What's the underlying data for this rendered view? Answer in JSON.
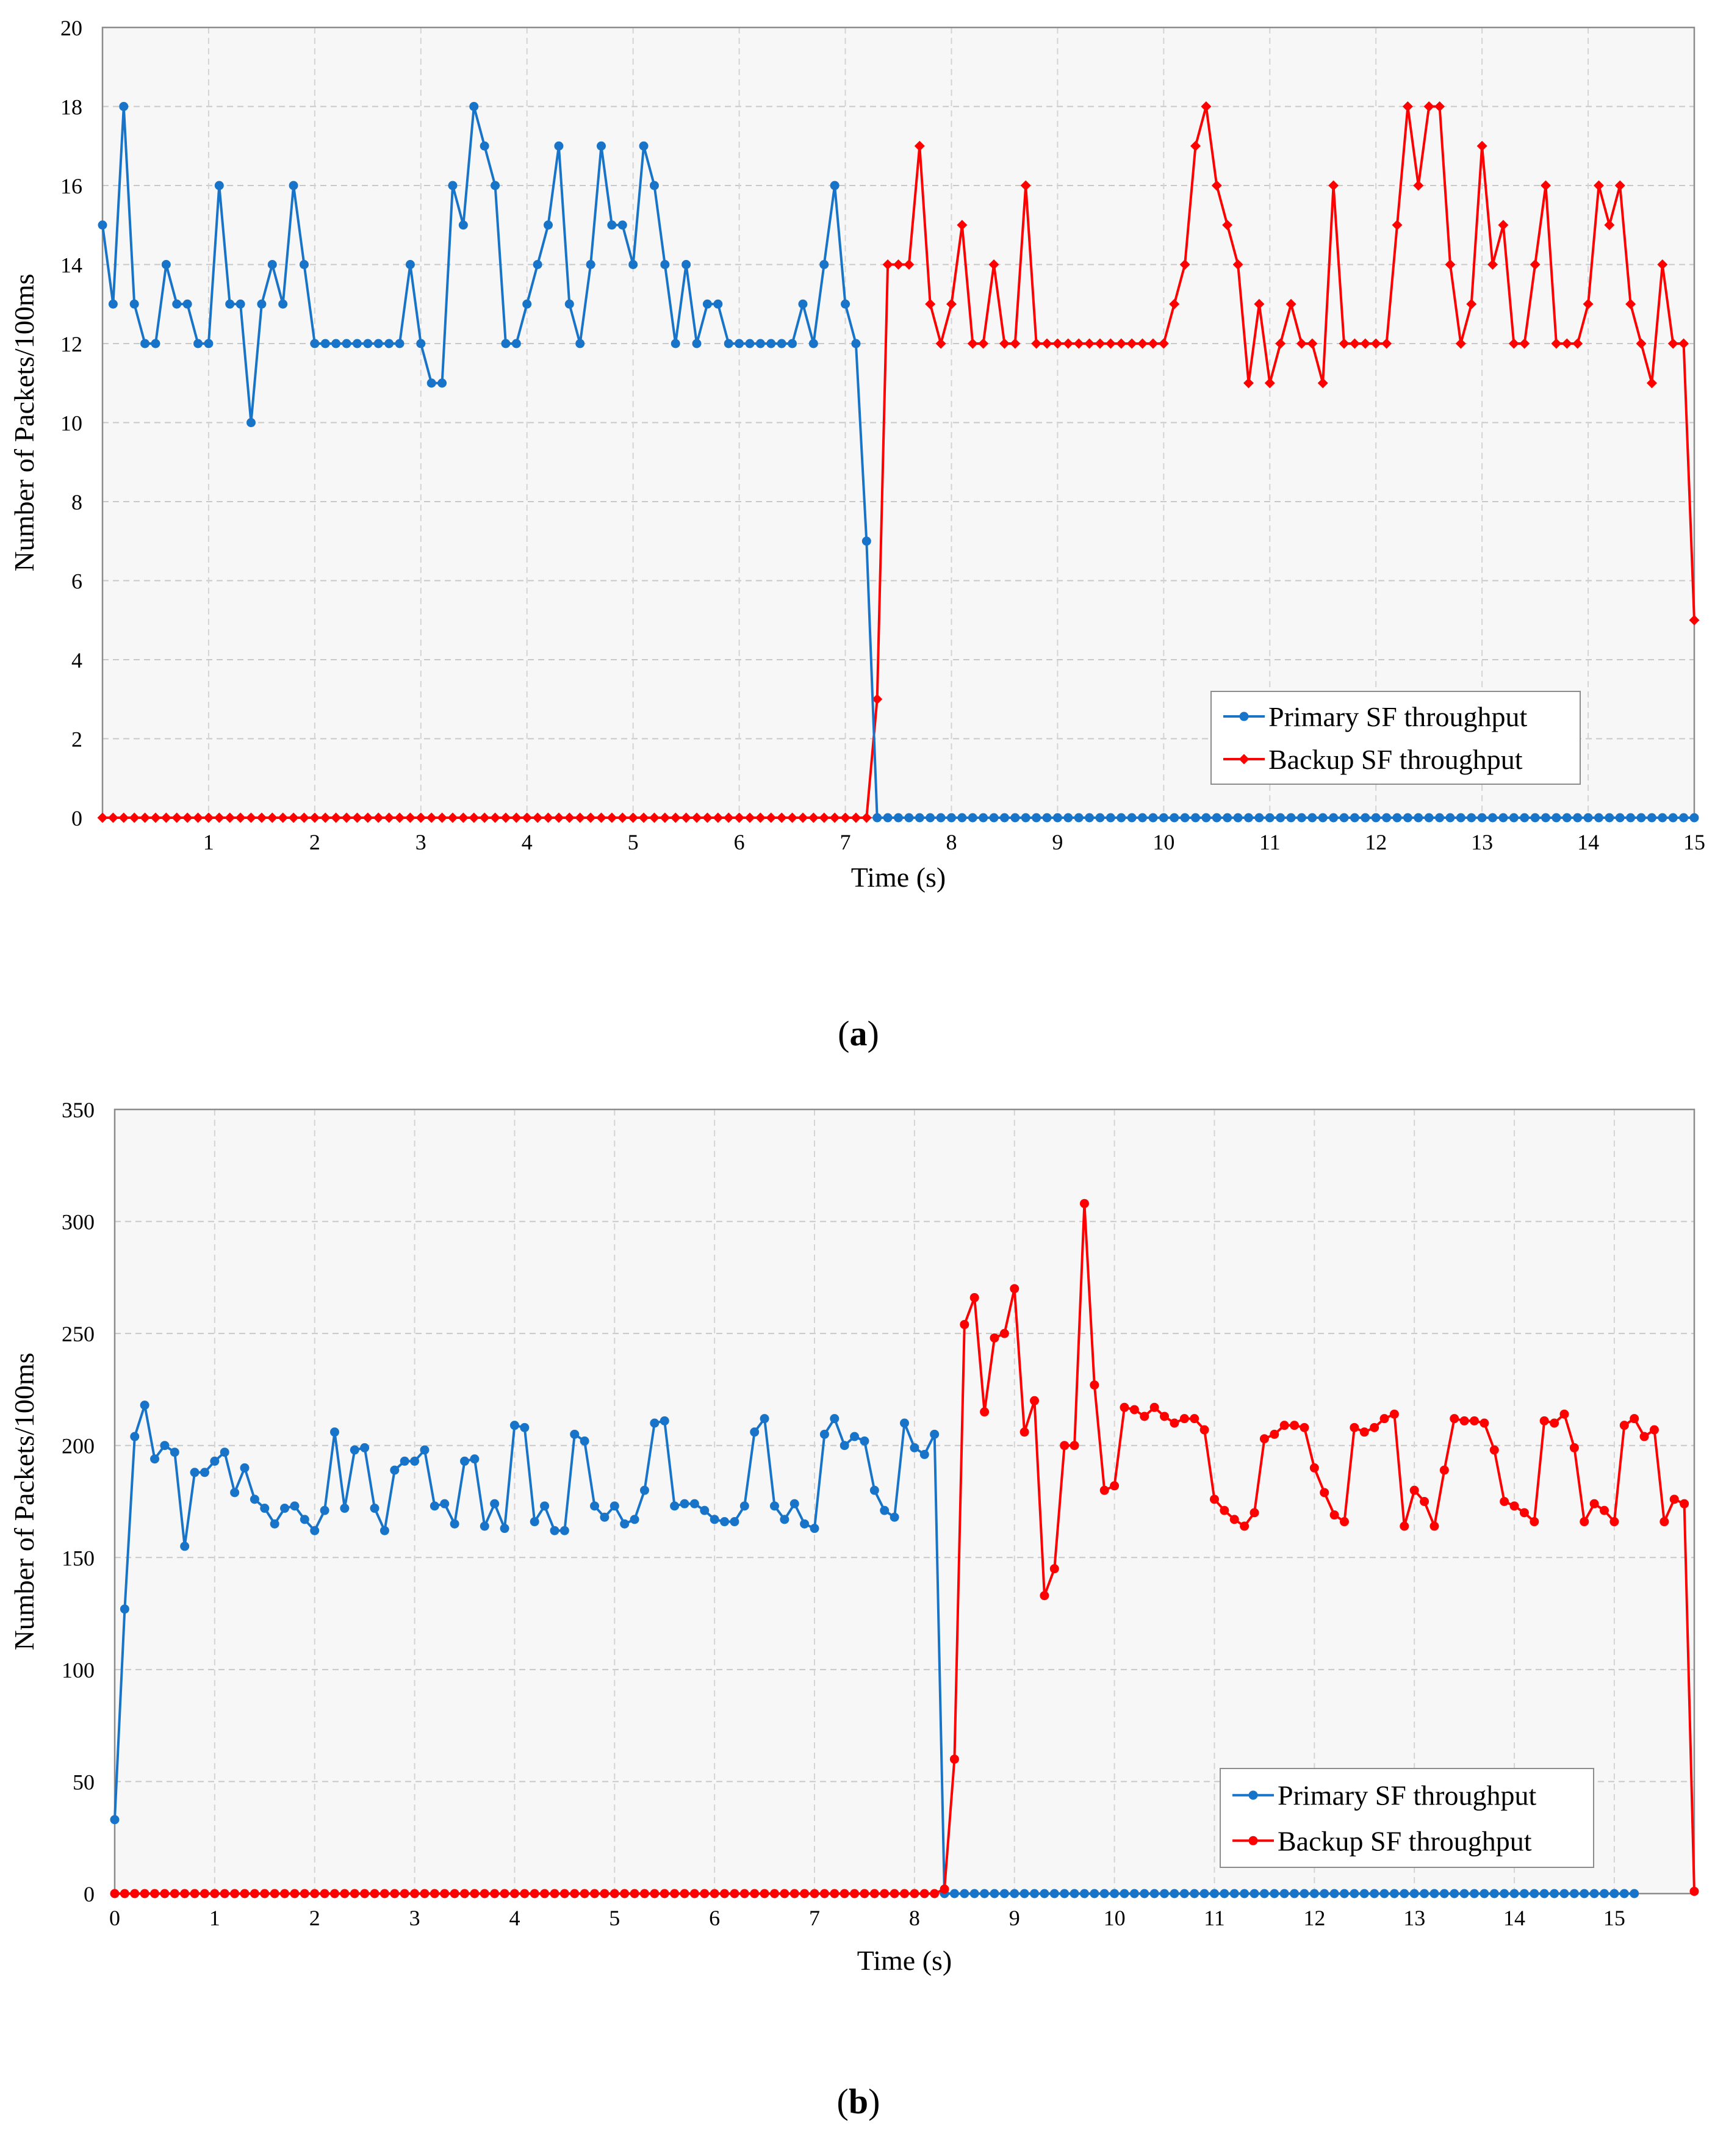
{
  "chart_data": [
    {
      "id": "a",
      "type": "line",
      "caption_letter": "a",
      "xlabel": "Time (s)",
      "ylabel": "Number of Packets/100ms",
      "xlim": [
        0,
        15
      ],
      "ylim": [
        0,
        20
      ],
      "xticks": [
        1,
        2,
        3,
        4,
        5,
        6,
        7,
        8,
        9,
        10,
        11,
        12,
        13,
        14,
        15
      ],
      "yticks": [
        0,
        2,
        4,
        6,
        8,
        10,
        12,
        14,
        16,
        18,
        20
      ],
      "grid": true,
      "legend_position": "bottom-right",
      "series": [
        {
          "name": "Primary SF throughput",
          "color": "#1874c8",
          "marker": "circle",
          "x_start": 0,
          "x_step": 0.1,
          "values": [
            15,
            13,
            18,
            13,
            12,
            12,
            14,
            13,
            13,
            12,
            12,
            16,
            13,
            13,
            10,
            13,
            14,
            13,
            16,
            14,
            12,
            12,
            12,
            12,
            12,
            12,
            12,
            12,
            12,
            14,
            12,
            11,
            11,
            16,
            15,
            18,
            17,
            16,
            12,
            12,
            13,
            14,
            15,
            17,
            13,
            12,
            14,
            17,
            15,
            15,
            14,
            17,
            16,
            14,
            12,
            14,
            12,
            13,
            13,
            12,
            12,
            12,
            12,
            12,
            12,
            12,
            13,
            12,
            14,
            16,
            13,
            12,
            7,
            0,
            0,
            0,
            0,
            0,
            0,
            0,
            0,
            0,
            0,
            0,
            0,
            0,
            0,
            0,
            0,
            0,
            0,
            0,
            0,
            0,
            0,
            0,
            0,
            0,
            0,
            0,
            0,
            0,
            0,
            0,
            0,
            0,
            0,
            0,
            0,
            0,
            0,
            0,
            0,
            0,
            0,
            0,
            0,
            0,
            0,
            0,
            0,
            0,
            0,
            0,
            0,
            0,
            0,
            0,
            0,
            0,
            0,
            0,
            0,
            0,
            0,
            0,
            0,
            0,
            0,
            0,
            0,
            0,
            0,
            0,
            0,
            0,
            0,
            0,
            0,
            0,
            0
          ]
        },
        {
          "name": "Backup SF throughput",
          "color": "#ff0000",
          "marker": "diamond",
          "x_start": 0,
          "x_step": 0.1,
          "values": [
            0,
            0,
            0,
            0,
            0,
            0,
            0,
            0,
            0,
            0,
            0,
            0,
            0,
            0,
            0,
            0,
            0,
            0,
            0,
            0,
            0,
            0,
            0,
            0,
            0,
            0,
            0,
            0,
            0,
            0,
            0,
            0,
            0,
            0,
            0,
            0,
            0,
            0,
            0,
            0,
            0,
            0,
            0,
            0,
            0,
            0,
            0,
            0,
            0,
            0,
            0,
            0,
            0,
            0,
            0,
            0,
            0,
            0,
            0,
            0,
            0,
            0,
            0,
            0,
            0,
            0,
            0,
            0,
            0,
            0,
            0,
            0,
            0,
            3,
            14,
            14,
            14,
            17,
            13,
            12,
            13,
            15,
            12,
            12,
            14,
            12,
            12,
            16,
            12,
            12,
            12,
            12,
            12,
            12,
            12,
            12,
            12,
            12,
            12,
            12,
            12,
            13,
            14,
            17,
            18,
            16,
            15,
            14,
            11,
            13,
            11,
            12,
            13,
            12,
            12,
            11,
            16,
            12,
            12,
            12,
            12,
            12,
            15,
            18,
            16,
            18,
            18,
            14,
            12,
            13,
            17,
            14,
            15,
            12,
            12,
            14,
            16,
            12,
            12,
            12,
            13,
            16,
            15,
            16,
            13,
            12,
            11,
            14,
            12,
            12,
            5
          ]
        }
      ]
    },
    {
      "id": "b",
      "type": "line",
      "caption_letter": "b",
      "xlabel": "Time (s)",
      "ylabel": "Number of Packets/100ms",
      "xlim": [
        0,
        15.8
      ],
      "ylim": [
        0,
        350
      ],
      "xticks": [
        0,
        1,
        2,
        3,
        4,
        5,
        6,
        7,
        8,
        9,
        10,
        11,
        12,
        13,
        14,
        15
      ],
      "yticks": [
        0,
        50,
        100,
        150,
        200,
        250,
        300,
        350
      ],
      "grid": true,
      "legend_position": "bottom-right",
      "series": [
        {
          "name": "Primary SF throughput",
          "color": "#1874c8",
          "marker": "circle",
          "x_start": 0,
          "x_step": 0.1,
          "values": [
            33,
            127,
            204,
            218,
            194,
            200,
            197,
            155,
            188,
            188,
            193,
            197,
            179,
            190,
            176,
            172,
            165,
            172,
            173,
            167,
            162,
            171,
            206,
            172,
            198,
            199,
            172,
            162,
            189,
            193,
            193,
            198,
            173,
            174,
            165,
            193,
            194,
            164,
            174,
            163,
            209,
            208,
            166,
            173,
            162,
            162,
            205,
            202,
            173,
            168,
            173,
            165,
            167,
            180,
            210,
            211,
            173,
            174,
            174,
            171,
            167,
            166,
            166,
            173,
            206,
            212,
            173,
            167,
            174,
            165,
            163,
            205,
            212,
            200,
            204,
            202,
            180,
            171,
            168,
            210,
            199,
            196,
            205,
            0,
            0,
            0,
            0,
            0,
            0,
            0,
            0,
            0,
            0,
            0,
            0,
            0,
            0,
            0,
            0,
            0,
            0,
            0,
            0,
            0,
            0,
            0,
            0,
            0,
            0,
            0,
            0,
            0,
            0,
            0,
            0,
            0,
            0,
            0,
            0,
            0,
            0,
            0,
            0,
            0,
            0,
            0,
            0,
            0,
            0,
            0,
            0,
            0,
            0,
            0,
            0,
            0,
            0,
            0,
            0,
            0,
            0,
            0,
            0,
            0,
            0,
            0,
            0,
            0,
            0,
            0,
            0,
            0,
            0
          ]
        },
        {
          "name": "Backup SF throughput",
          "color": "#ff0000",
          "marker": "circle",
          "x_start": 0,
          "x_step": 0.1,
          "values": [
            0,
            0,
            0,
            0,
            0,
            0,
            0,
            0,
            0,
            0,
            0,
            0,
            0,
            0,
            0,
            0,
            0,
            0,
            0,
            0,
            0,
            0,
            0,
            0,
            0,
            0,
            0,
            0,
            0,
            0,
            0,
            0,
            0,
            0,
            0,
            0,
            0,
            0,
            0,
            0,
            0,
            0,
            0,
            0,
            0,
            0,
            0,
            0,
            0,
            0,
            0,
            0,
            0,
            0,
            0,
            0,
            0,
            0,
            0,
            0,
            0,
            0,
            0,
            0,
            0,
            0,
            0,
            0,
            0,
            0,
            0,
            0,
            0,
            0,
            0,
            0,
            0,
            0,
            0,
            0,
            0,
            0,
            0,
            2,
            60,
            254,
            266,
            215,
            248,
            250,
            270,
            206,
            220,
            133,
            145,
            200,
            200,
            308,
            227,
            180,
            182,
            217,
            216,
            213,
            217,
            213,
            210,
            212,
            212,
            207,
            176,
            171,
            167,
            164,
            170,
            203,
            205,
            209,
            209,
            208,
            190,
            179,
            169,
            166,
            208,
            206,
            208,
            212,
            214,
            164,
            180,
            175,
            164,
            189,
            212,
            211,
            211,
            210,
            198,
            175,
            173,
            170,
            166,
            211,
            210,
            214,
            199,
            166,
            174,
            171,
            166,
            209,
            212,
            204,
            207,
            166,
            176,
            174,
            1
          ]
        }
      ]
    }
  ]
}
